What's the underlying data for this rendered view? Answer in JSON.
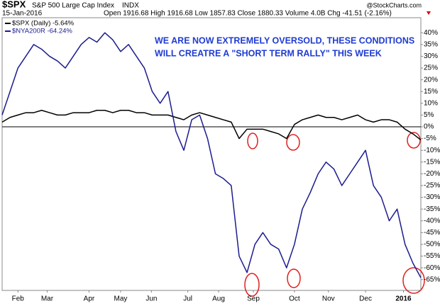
{
  "chart_data": {
    "type": "line",
    "symbol": "$SPX",
    "name": "S&P 500 Large Cap Index",
    "exchange": "INDX",
    "date": "15-Jan-2016",
    "quote": "Open 1916.68  High 1916.68  Low 1857.83  Close 1880.33  Volume 4.0B  Chg -41.51 (-2.16%)",
    "watermark": "@StockCharts.com",
    "annotation": [
      "WE ARE NOW EXTREMELY OVERSOLD, THESE CONDITIONS",
      "WILL CREATRE A \"SHORT TERM RALLY\" THIS WEEK"
    ],
    "series": [
      {
        "name": "$SPX (Daily) -5.64%",
        "color": "#000000",
        "values": [
          2,
          4,
          5,
          6,
          6,
          7,
          6,
          5,
          5,
          6,
          6,
          6,
          7,
          7,
          6,
          7,
          7,
          6,
          6,
          5,
          5,
          5,
          4,
          3,
          5,
          6,
          5,
          4,
          3,
          2,
          -5,
          -1,
          -1,
          -1,
          -2,
          -3,
          -5,
          1,
          3,
          4,
          5,
          4,
          4,
          3,
          4,
          5,
          3,
          2,
          3,
          3,
          2,
          -1,
          -3,
          -5.6
        ]
      },
      {
        "name": "$NYA200R -64.24%",
        "color": "#1c1c8f",
        "values": [
          5,
          15,
          25,
          30,
          35,
          33,
          30,
          28,
          25,
          30,
          35,
          38,
          36,
          40,
          37,
          32,
          35,
          30,
          25,
          15,
          10,
          15,
          -2,
          -10,
          3,
          5,
          -5,
          -20,
          -22,
          -25,
          -55,
          -62,
          -50,
          -45,
          -50,
          -52,
          -60,
          -50,
          -35,
          -28,
          -20,
          -15,
          -18,
          -25,
          -20,
          -15,
          -10,
          -25,
          -30,
          -40,
          -35,
          -50,
          -58,
          -64.2
        ]
      }
    ],
    "xlim": [
      0,
      53
    ],
    "xticks": [
      {
        "value": 2,
        "label": "Feb"
      },
      {
        "value": 5.7,
        "label": "Mar"
      },
      {
        "value": 11,
        "label": "Apr"
      },
      {
        "value": 15,
        "label": "May"
      },
      {
        "value": 18.9,
        "label": "Jun"
      },
      {
        "value": 23.5,
        "label": "Jul"
      },
      {
        "value": 27.4,
        "label": "Aug"
      },
      {
        "value": 31.8,
        "label": "Sep"
      },
      {
        "value": 37,
        "label": "Oct"
      },
      {
        "value": 41.3,
        "label": "Nov"
      },
      {
        "value": 46,
        "label": "Dec"
      },
      {
        "value": 50.8,
        "label": "2016"
      }
    ],
    "ylim": [
      -69.6,
      46.4
    ],
    "yticks": [
      {
        "value": 40,
        "label": "40%"
      },
      {
        "value": 35,
        "label": "35%"
      },
      {
        "value": 30,
        "label": "30%"
      },
      {
        "value": 25,
        "label": "25%"
      },
      {
        "value": 20,
        "label": "20%"
      },
      {
        "value": 15,
        "label": "15%"
      },
      {
        "value": 10,
        "label": "10%"
      },
      {
        "value": 5,
        "label": "5%"
      },
      {
        "value": 0,
        "label": "0%"
      },
      {
        "value": -5,
        "label": "-5%"
      },
      {
        "value": -10,
        "label": "-10%"
      },
      {
        "value": -15,
        "label": "-15%"
      },
      {
        "value": -20,
        "label": "-20%"
      },
      {
        "value": -25,
        "label": "-25%"
      },
      {
        "value": -30,
        "label": "-30%"
      },
      {
        "value": -35,
        "label": "-35%"
      },
      {
        "value": -40,
        "label": "-40%"
      },
      {
        "value": -45,
        "label": "-45%"
      },
      {
        "value": -50,
        "label": "-50%"
      },
      {
        "value": -55,
        "label": "-55%"
      },
      {
        "value": -60,
        "label": "-60%"
      },
      {
        "value": -65,
        "label": "-65%"
      }
    ],
    "grid": false
  }
}
